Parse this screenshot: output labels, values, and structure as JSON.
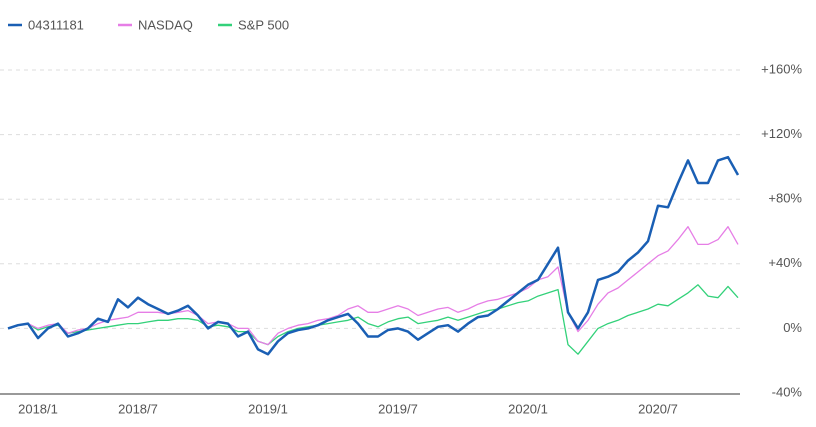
{
  "chart_data": {
    "type": "line",
    "categories": [
      null,
      null,
      null,
      "2018/1",
      null,
      null,
      null,
      null,
      null,
      null,
      null,
      null,
      null,
      "2018/7",
      null,
      null,
      null,
      null,
      null,
      null,
      null,
      null,
      null,
      null,
      null,
      null,
      "2019/1",
      null,
      null,
      null,
      null,
      null,
      null,
      null,
      null,
      null,
      null,
      null,
      null,
      "2019/7",
      null,
      null,
      null,
      null,
      null,
      null,
      null,
      null,
      null,
      null,
      null,
      null,
      "2020/1",
      null,
      null,
      null,
      null,
      null,
      null,
      null,
      null,
      null,
      null,
      null,
      null,
      "2020/7",
      null,
      null,
      null,
      null,
      null,
      null,
      null,
      null
    ],
    "series": [
      {
        "name": "04311181",
        "color": "#1a5fb4",
        "values": [
          0,
          2,
          3,
          -6,
          0,
          3,
          -5,
          -3,
          0,
          6,
          4,
          18,
          13,
          19,
          15,
          12,
          9,
          11,
          14,
          8,
          0,
          4,
          3,
          -5,
          -2,
          -13,
          -16,
          -8,
          -3,
          -1,
          0,
          2,
          5,
          7,
          9,
          3,
          -5,
          -5,
          -1,
          0,
          -2,
          -7,
          -3,
          1,
          2,
          -2,
          3,
          7,
          8,
          12,
          17,
          22,
          27,
          30,
          40,
          50,
          10,
          0,
          10,
          30,
          32,
          35,
          42,
          47,
          54,
          76,
          75,
          90,
          104,
          90,
          90,
          104,
          106,
          95
        ]
      },
      {
        "name": "NASDAQ",
        "color": "#e67ee6",
        "values": [
          0,
          2,
          3,
          0,
          2,
          3,
          -3,
          -1,
          0,
          3,
          5,
          6,
          7,
          10,
          10,
          10,
          9,
          10,
          11,
          8,
          3,
          4,
          3,
          0,
          0,
          -8,
          -10,
          -3,
          0,
          2,
          3,
          5,
          6,
          8,
          12,
          14,
          10,
          10,
          12,
          14,
          12,
          8,
          10,
          12,
          13,
          10,
          12,
          15,
          17,
          18,
          20,
          22,
          25,
          30,
          32,
          38,
          10,
          -2,
          5,
          15,
          22,
          25,
          30,
          35,
          40,
          45,
          48,
          55,
          63,
          52,
          52,
          55,
          63,
          52
        ]
      },
      {
        "name": "S&P 500",
        "color": "#33d17a",
        "values": [
          0,
          2,
          3,
          -1,
          1,
          2,
          -3,
          -2,
          -1,
          0,
          1,
          2,
          3,
          3,
          4,
          5,
          5,
          6,
          6,
          5,
          1,
          2,
          1,
          -2,
          -2,
          -8,
          -10,
          -5,
          -2,
          0,
          1,
          2,
          3,
          4,
          5,
          7,
          3,
          1,
          4,
          6,
          7,
          3,
          4,
          5,
          7,
          5,
          7,
          9,
          11,
          12,
          14,
          16,
          17,
          20,
          22,
          24,
          -10,
          -16,
          -8,
          0,
          3,
          5,
          8,
          10,
          12,
          15,
          14,
          18,
          22,
          27,
          20,
          19,
          26,
          19
        ]
      }
    ],
    "ylim": [
      -40,
      160
    ],
    "yticks": [
      {
        "value": -40,
        "label": "-40%"
      },
      {
        "value": 0,
        "label": "0%"
      },
      {
        "value": 40,
        "label": "+40%"
      },
      {
        "value": 80,
        "label": "+80%"
      },
      {
        "value": 120,
        "label": "+120%"
      },
      {
        "value": 160,
        "label": "+160%"
      }
    ],
    "grid": true,
    "legend": "top-left"
  }
}
